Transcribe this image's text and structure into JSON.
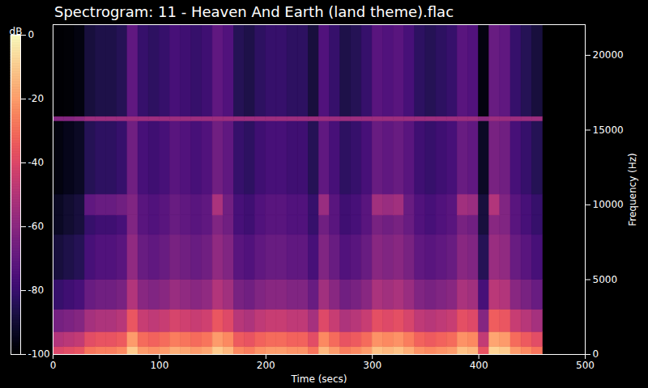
{
  "chart_data": {
    "type": "heatmap",
    "title": "Spectrogram: 11 - Heaven And Earth (land theme).flac",
    "x_label": "Time (secs)",
    "y_label": "Frequency (Hz)",
    "color": "magma",
    "xlim": [
      0,
      500
    ],
    "xticks": [
      0,
      100,
      200,
      300,
      400,
      500
    ],
    "ylim": [
      0,
      22050
    ],
    "yticks": [
      0,
      5000,
      10000,
      15000,
      20000
    ],
    "grid": false,
    "colorbar": {
      "label": "dB",
      "range": [
        -100,
        0
      ],
      "ticks": [
        0,
        -20,
        -40,
        -60,
        -80,
        -100
      ]
    },
    "time_bins": [
      0,
      10,
      20,
      30,
      40,
      50,
      60,
      70,
      80,
      90,
      100,
      110,
      120,
      130,
      140,
      150,
      160,
      170,
      180,
      190,
      200,
      210,
      220,
      230,
      240,
      250,
      260,
      270,
      280,
      290,
      300,
      310,
      320,
      330,
      340,
      350,
      360,
      370,
      380,
      390,
      400,
      410,
      420,
      430,
      440,
      450,
      460
    ],
    "frequency_bins": [
      0,
      500,
      1500,
      3000,
      5000,
      8000,
      9300,
      10700,
      15600,
      15900,
      22050
    ],
    "cells": [
      [
        -41,
        -39,
        -37,
        -29,
        -27,
        -27,
        -25,
        -11,
        -21,
        -23,
        -21,
        -17,
        -19,
        -21,
        -19,
        -11,
        -15,
        -25,
        -27,
        -23,
        -21,
        -21,
        -23,
        -23,
        -29,
        -15,
        -21,
        -27,
        -25,
        -21,
        -13,
        -15,
        -13,
        -17,
        -23,
        -25,
        -23,
        -21,
        -13,
        -15,
        -37,
        -9,
        -11,
        -21,
        -25,
        -29
      ],
      [
        -51,
        -49,
        -47,
        -39,
        -37,
        -37,
        -35,
        -21,
        -31,
        -33,
        -31,
        -27,
        -29,
        -31,
        -29,
        -21,
        -25,
        -35,
        -37,
        -33,
        -31,
        -31,
        -33,
        -33,
        -39,
        -25,
        -31,
        -37,
        -35,
        -31,
        -23,
        -25,
        -23,
        -27,
        -33,
        -35,
        -33,
        -31,
        -23,
        -25,
        -47,
        -19,
        -21,
        -31,
        -35,
        -39
      ],
      [
        -66,
        -64,
        -62,
        -54,
        -52,
        -52,
        -50,
        -36,
        -46,
        -48,
        -46,
        -42,
        -44,
        -46,
        -44,
        -36,
        -40,
        -50,
        -52,
        -48,
        -46,
        -46,
        -48,
        -48,
        -54,
        -40,
        -46,
        -52,
        -50,
        -46,
        -38,
        -40,
        -38,
        -42,
        -48,
        -50,
        -48,
        -46,
        -38,
        -40,
        -62,
        -34,
        -36,
        -46,
        -50,
        -54
      ],
      [
        -81,
        -79,
        -77,
        -69,
        -67,
        -67,
        -65,
        -51,
        -61,
        -63,
        -61,
        -57,
        -59,
        -61,
        -59,
        -51,
        -55,
        -65,
        -67,
        -63,
        -61,
        -61,
        -63,
        -63,
        -69,
        -55,
        -61,
        -67,
        -65,
        -61,
        -53,
        -55,
        -53,
        -57,
        -63,
        -65,
        -63,
        -61,
        -53,
        -55,
        -77,
        -49,
        -51,
        -61,
        -65,
        -69
      ],
      [
        -89,
        -87,
        -85,
        -77,
        -75,
        -75,
        -73,
        -59,
        -69,
        -71,
        -69,
        -65,
        -67,
        -69,
        -67,
        -59,
        -63,
        -73,
        -75,
        -71,
        -69,
        -69,
        -71,
        -71,
        -77,
        -63,
        -69,
        -75,
        -73,
        -69,
        -61,
        -63,
        -61,
        -65,
        -71,
        -73,
        -71,
        -69,
        -61,
        -63,
        -85,
        -57,
        -59,
        -69,
        -73,
        -77
      ],
      [
        -93,
        -91,
        -89,
        -81,
        -79,
        -79,
        -77,
        -63,
        -73,
        -75,
        -73,
        -69,
        -71,
        -73,
        -71,
        -63,
        -67,
        -77,
        -79,
        -75,
        -73,
        -73,
        -75,
        -75,
        -81,
        -67,
        -73,
        -79,
        -77,
        -73,
        -65,
        -67,
        -65,
        -69,
        -75,
        -77,
        -75,
        -73,
        -65,
        -67,
        -89,
        -61,
        -63,
        -73,
        -77,
        -81
      ],
      [
        -93,
        -91,
        -89,
        -71,
        -69,
        -69,
        -67,
        -63,
        -73,
        -75,
        -73,
        -69,
        -71,
        -73,
        -71,
        -53,
        -67,
        -77,
        -79,
        -75,
        -73,
        -73,
        -75,
        -75,
        -81,
        -57,
        -73,
        -79,
        -77,
        -73,
        -55,
        -57,
        -55,
        -69,
        -75,
        -77,
        -75,
        -73,
        -55,
        -57,
        -89,
        -51,
        -63,
        -73,
        -77,
        -81
      ],
      [
        -97,
        -95,
        -93,
        -85,
        -83,
        -83,
        -81,
        -67,
        -77,
        -79,
        -77,
        -73,
        -75,
        -77,
        -75,
        -67,
        -71,
        -81,
        -83,
        -79,
        -77,
        -77,
        -79,
        -79,
        -85,
        -71,
        -77,
        -83,
        -81,
        -77,
        -69,
        -71,
        -69,
        -73,
        -79,
        -81,
        -79,
        -77,
        -69,
        -71,
        -93,
        -65,
        -67,
        -77,
        -81,
        -85
      ],
      [
        -62,
        -62,
        -60,
        -56,
        -56,
        -56,
        -56,
        -56,
        -56,
        -56,
        -56,
        -56,
        -56,
        -56,
        -56,
        -56,
        -56,
        -56,
        -56,
        -56,
        -56,
        -56,
        -56,
        -56,
        -56,
        -56,
        -56,
        -56,
        -56,
        -56,
        -56,
        -56,
        -56,
        -56,
        -56,
        -56,
        -56,
        -56,
        -56,
        -56,
        -60,
        -56,
        -56,
        -56,
        -56,
        -56
      ],
      [
        -100,
        -99,
        -97,
        -89,
        -87,
        -87,
        -85,
        -71,
        -81,
        -83,
        -81,
        -77,
        -79,
        -81,
        -79,
        -71,
        -75,
        -85,
        -87,
        -83,
        -81,
        -81,
        -83,
        -83,
        -89,
        -75,
        -81,
        -87,
        -85,
        -81,
        -73,
        -75,
        -73,
        -77,
        -83,
        -85,
        -83,
        -81,
        -73,
        -75,
        -97,
        -69,
        -71,
        -81,
        -85,
        -89
      ]
    ]
  }
}
